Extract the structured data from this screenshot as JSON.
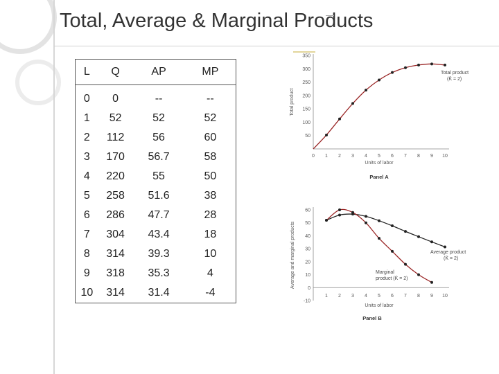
{
  "title": "Total, Average & Marginal Products",
  "table": {
    "headers": [
      "L",
      "Q",
      "AP",
      "MP"
    ],
    "rows": [
      [
        "0",
        "0",
        "--",
        "--"
      ],
      [
        "1",
        "52",
        "52",
        "52"
      ],
      [
        "2",
        "112",
        "56",
        "60"
      ],
      [
        "3",
        "170",
        "56.7",
        "58"
      ],
      [
        "4",
        "220",
        "55",
        "50"
      ],
      [
        "5",
        "258",
        "51.6",
        "38"
      ],
      [
        "6",
        "286",
        "47.7",
        "28"
      ],
      [
        "7",
        "304",
        "43.4",
        "18"
      ],
      [
        "8",
        "314",
        "39.3",
        "10"
      ],
      [
        "9",
        "318",
        "35.3",
        "4"
      ],
      [
        "10",
        "314",
        "31.4",
        "-4"
      ]
    ]
  },
  "chart_data": [
    {
      "type": "line",
      "panel": "Panel A",
      "xlabel": "Units of labor",
      "ylabel": "Total product",
      "x": [
        0,
        1,
        2,
        3,
        4,
        5,
        6,
        7,
        8,
        9,
        10
      ],
      "xlim": [
        0,
        10
      ],
      "ylim": [
        0,
        350
      ],
      "yticks": [
        50,
        100,
        150,
        200,
        250,
        300,
        350
      ],
      "series": [
        {
          "name": "Total product",
          "name_sub": "(K̄ = 2)",
          "values": [
            0,
            52,
            112,
            170,
            220,
            258,
            286,
            304,
            314,
            318,
            314
          ],
          "color": "#9a2626"
        }
      ]
    },
    {
      "type": "line",
      "panel": "Panel B",
      "xlabel": "Units of labor",
      "ylabel": "Average and marginal products",
      "xlim": [
        0,
        10
      ],
      "ylim": [
        -10,
        60
      ],
      "yticks": [
        -10,
        0,
        10,
        20,
        30,
        40,
        50,
        60
      ],
      "series": [
        {
          "name": "Average product",
          "name_sub": "(K̄ = 2)",
          "x": [
            1,
            2,
            3,
            4,
            5,
            6,
            7,
            8,
            9,
            10
          ],
          "values": [
            52,
            56,
            56.7,
            55,
            51.6,
            47.7,
            43.4,
            39.3,
            35.3,
            31.4
          ],
          "color": "#222222"
        },
        {
          "name": "Marginal",
          "name_line2": "product (K̄ = 2)",
          "x": [
            1,
            2,
            3,
            4,
            5,
            6,
            7,
            8,
            9
          ],
          "values": [
            52,
            60,
            58,
            50,
            38,
            28,
            18,
            10,
            4
          ],
          "color": "#9a2626"
        }
      ]
    }
  ]
}
